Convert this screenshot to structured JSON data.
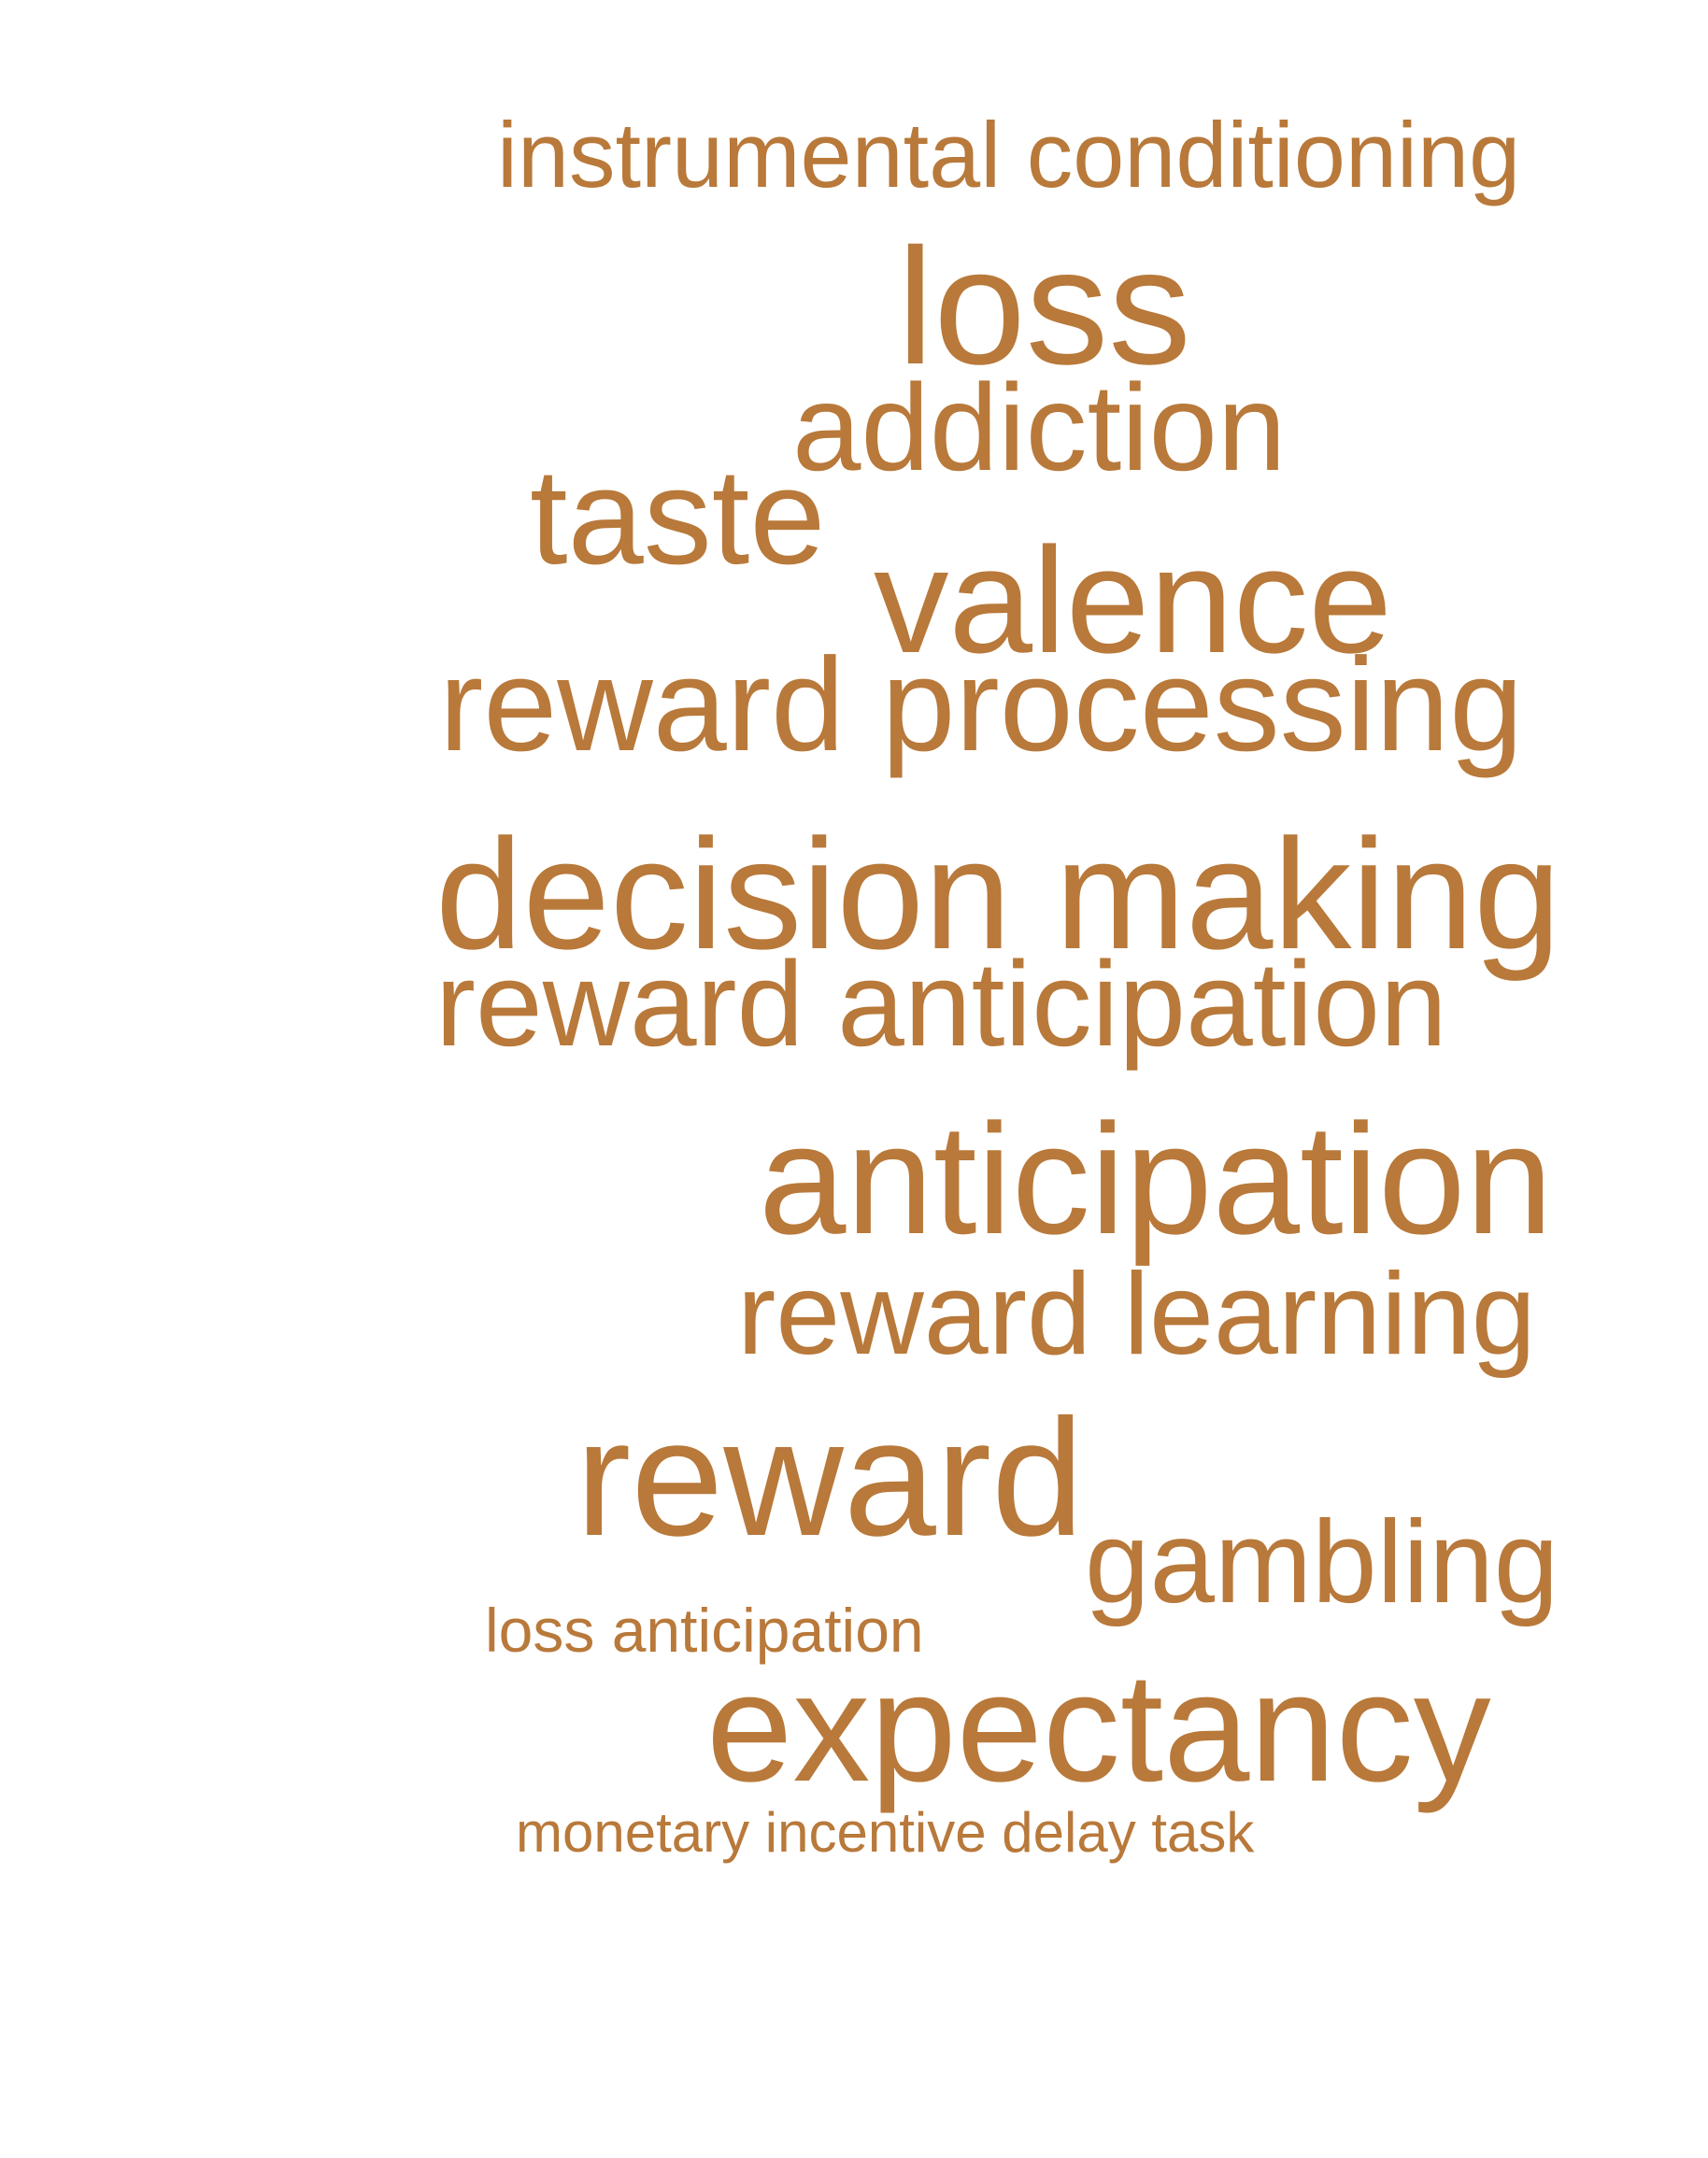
{
  "word_color": "#b8793a",
  "words": [
    {
      "text": "instrumental conditioning"
    },
    {
      "text": "loss"
    },
    {
      "text": "addiction"
    },
    {
      "text": "taste"
    },
    {
      "text": "valence"
    },
    {
      "text": "reward processing"
    },
    {
      "text": "decision making"
    },
    {
      "text": "reward anticipation"
    },
    {
      "text": "anticipation"
    },
    {
      "text": "reward learning"
    },
    {
      "text": "reward"
    },
    {
      "text": "gambling"
    },
    {
      "text": "loss anticipation"
    },
    {
      "text": "expectancy"
    },
    {
      "text": "monetary incentive delay task"
    }
  ]
}
